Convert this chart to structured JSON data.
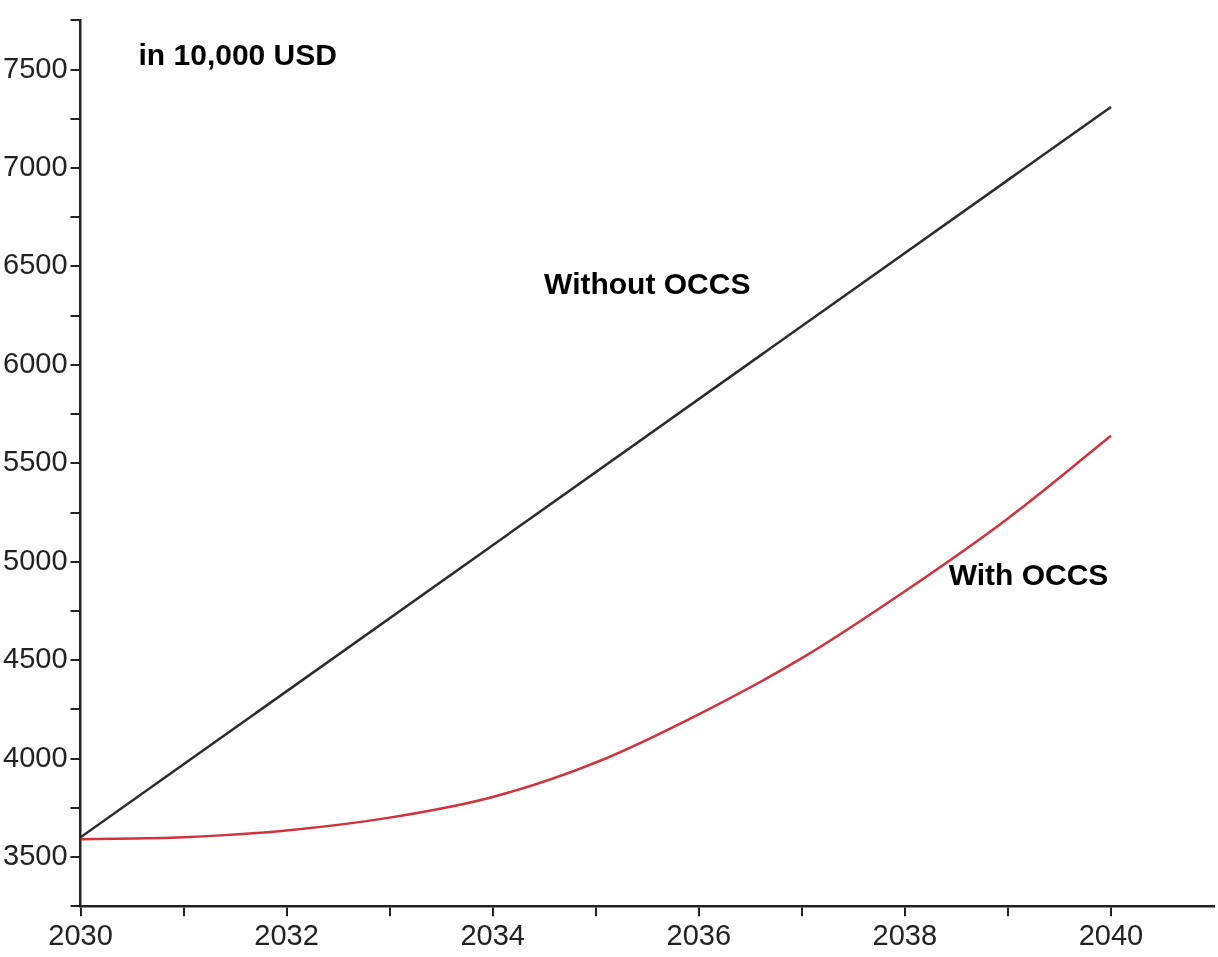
{
  "chart_data": {
    "type": "line",
    "ylabel": "in 10,000 USD",
    "xlim": [
      2030,
      2041
    ],
    "xticks": [
      2030,
      {
        "value": 2031,
        "label": null
      },
      2032,
      {
        "value": 2033,
        "label": null
      },
      2034,
      {
        "value": 2035,
        "label": null
      },
      2036,
      {
        "value": 2037,
        "label": null
      },
      2038,
      {
        "value": 2039,
        "label": null
      },
      2040
    ],
    "ylim": [
      3250,
      7750
    ],
    "yticks": [
      {
        "value": 3250,
        "label": null
      },
      3500,
      {
        "value": 3750,
        "label": null
      },
      4000,
      {
        "value": 4250,
        "label": null
      },
      4500,
      {
        "value": 4750,
        "label": null
      },
      5000,
      {
        "value": 5250,
        "label": null
      },
      5500,
      {
        "value": 5750,
        "label": null
      },
      6000,
      {
        "value": 6250,
        "label": null
      },
      6500,
      {
        "value": 6750,
        "label": null
      },
      7000,
      {
        "value": 7250,
        "label": null
      },
      7500,
      {
        "value": 7750,
        "label": null
      }
    ],
    "grid": false,
    "legend": false,
    "marker": "none",
    "line_style": "solid",
    "series": [
      {
        "name": "Without OCCS",
        "color": "#2b2b2b",
        "x": [
          2030,
          2040
        ],
        "values": [
          3600,
          7310
        ]
      },
      {
        "name": "With OCCS",
        "color": "#d1323c",
        "x": [
          2030,
          2031,
          2032,
          2033,
          2034,
          2035,
          2036,
          2037,
          2038,
          2039,
          2040
        ],
        "values": [
          3590,
          3600,
          3635,
          3700,
          3805,
          3980,
          4225,
          4510,
          4850,
          5220,
          5640
        ]
      }
    ]
  }
}
